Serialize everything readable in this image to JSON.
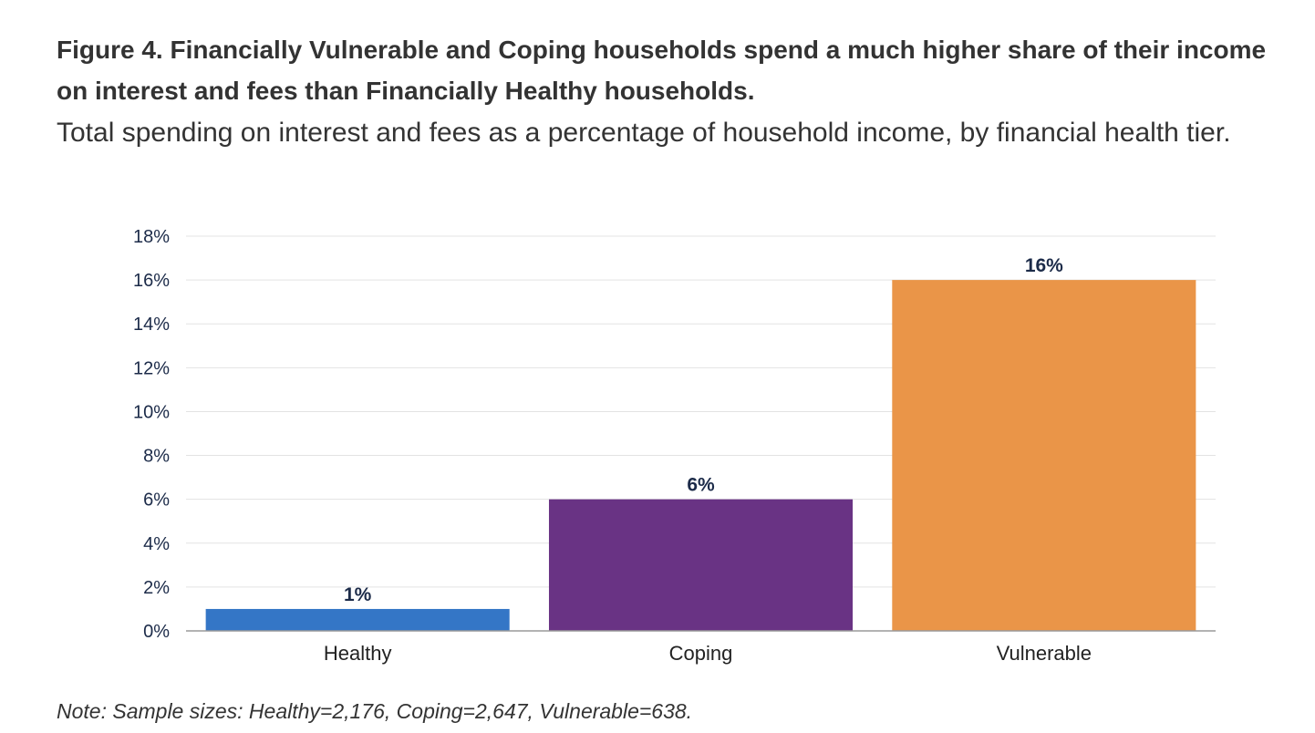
{
  "figure": {
    "title": "Figure 4. Financially Vulnerable and Coping households spend a much higher share of their income on interest and fees than Financially Healthy households.",
    "subtitle": "Total spending on interest and fees as a percentage of household income, by financial health tier.",
    "note": "Note: Sample sizes: Healthy=2,176, Coping=2,647, Vulnerable=638."
  },
  "chart_data": {
    "type": "bar",
    "title": "",
    "xlabel": "",
    "ylabel": "",
    "categories": [
      "Healthy",
      "Coping",
      "Vulnerable"
    ],
    "values": [
      1,
      6,
      16
    ],
    "data_labels": [
      "1%",
      "6%",
      "16%"
    ],
    "colors": [
      "#3476c6",
      "#693384",
      "#ea9548"
    ],
    "ylim": [
      0,
      18
    ],
    "yticks": [
      0,
      2,
      4,
      6,
      8,
      10,
      12,
      14,
      16,
      18
    ],
    "ytick_labels": [
      "0%",
      "2%",
      "4%",
      "6%",
      "8%",
      "10%",
      "12%",
      "14%",
      "16%",
      "18%"
    ],
    "grid": true,
    "legend": "none"
  }
}
